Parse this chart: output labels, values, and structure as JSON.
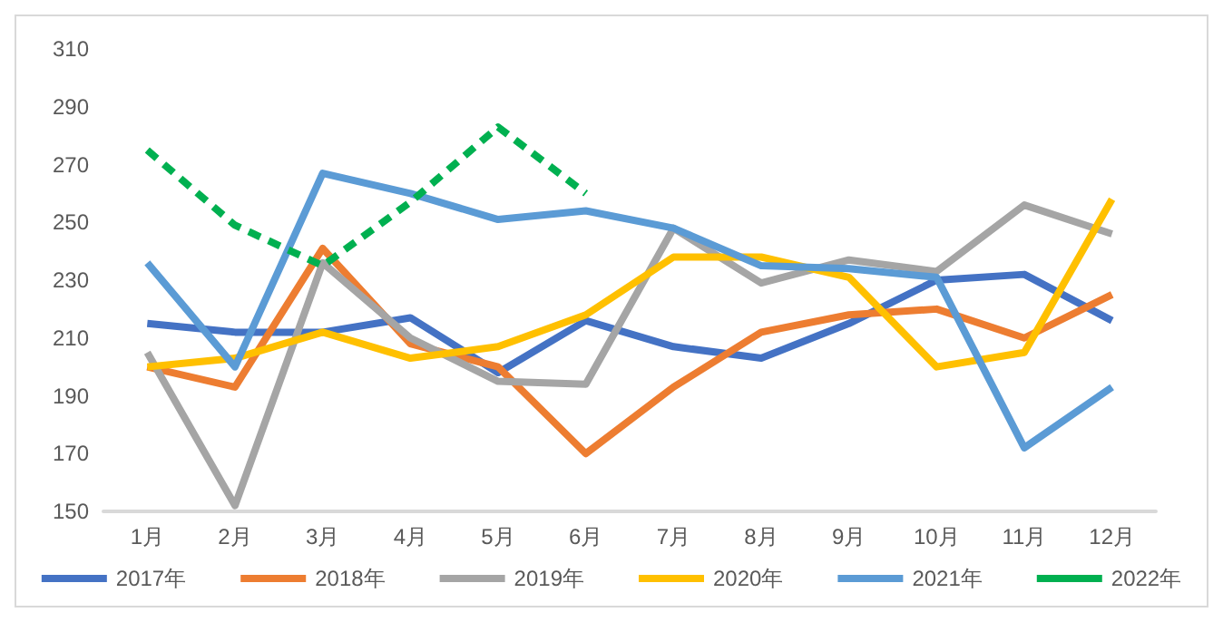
{
  "chart_data": {
    "type": "line",
    "categories": [
      "1月",
      "2月",
      "3月",
      "4月",
      "5月",
      "6月",
      "7月",
      "8月",
      "9月",
      "10月",
      "11月",
      "12月"
    ],
    "series": [
      {
        "name": "2017年",
        "color": "#4472c4",
        "values": [
          215,
          212,
          212,
          217,
          198,
          216,
          207,
          203,
          215,
          230,
          232,
          216
        ]
      },
      {
        "name": "2018年",
        "color": "#ed7d31",
        "values": [
          200,
          193,
          241,
          208,
          200,
          170,
          193,
          212,
          218,
          220,
          210,
          225
        ]
      },
      {
        "name": "2019年",
        "color": "#a5a5a5",
        "values": [
          205,
          152,
          236,
          210,
          195,
          194,
          248,
          229,
          237,
          233,
          256,
          246
        ]
      },
      {
        "name": "2020年",
        "color": "#ffc000",
        "values": [
          200,
          203,
          212,
          203,
          207,
          218,
          238,
          238,
          231,
          200,
          205,
          258
        ]
      },
      {
        "name": "2021年",
        "color": "#5b9bd5",
        "values": [
          236,
          200,
          267,
          260,
          251,
          254,
          248,
          235,
          234,
          231,
          172,
          193
        ]
      },
      {
        "name": "2022年",
        "color": "#00b050",
        "line_style": "dashed",
        "values": [
          275,
          249,
          235,
          257,
          283,
          260,
          null,
          null,
          null,
          null,
          null,
          null
        ]
      }
    ],
    "ylim": [
      150,
      310
    ],
    "yticks": [
      150,
      170,
      190,
      210,
      230,
      250,
      270,
      290,
      310
    ],
    "grid": false,
    "legend": "bottom",
    "marker": "none",
    "line_style": "solid"
  }
}
